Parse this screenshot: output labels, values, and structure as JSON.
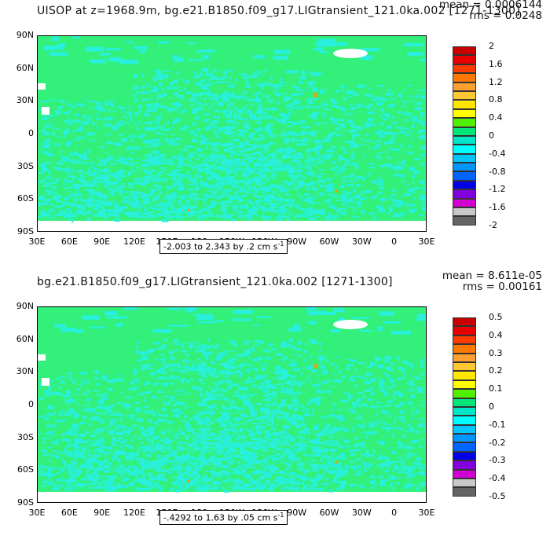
{
  "panels": [
    {
      "title": "UISOP at z=1968.9m, bg.e21.B1850.f09_g17.LIGtransient_121.0ka.002 [1271-1300]",
      "mean": "mean = 0.0006144",
      "rms": "rms = 0.0248",
      "range": "-2.003 to 2.343 by .2 cm s",
      "range_unit_sup": "-1",
      "colorbar_labels": [
        "2",
        "1.6",
        "1.2",
        "0.8",
        "0.4",
        "0",
        "-0.4",
        "-0.8",
        "-1.2",
        "-1.6",
        "-2"
      ]
    },
    {
      "title": "bg.e21.B1850.f09_g17.LIGtransient_121.0ka.002 [1271-1300]",
      "mean": "mean = 8.611e-05",
      "rms": "rms = 0.00161",
      "range": "-.4292 to 1.63 by .05 cm s",
      "range_unit_sup": "-1",
      "colorbar_labels": [
        "0.5",
        "0.4",
        "0.3",
        "0.2",
        "0.1",
        "0",
        "-0.1",
        "-0.2",
        "-0.3",
        "-0.4",
        "-0.5"
      ]
    }
  ],
  "lat_labels": [
    "90N",
    "60N",
    "30N",
    "0",
    "30S",
    "60S",
    "90S"
  ],
  "lon_labels": [
    "30E",
    "60E",
    "90E",
    "120E",
    "150E",
    "180",
    "150W",
    "120W",
    "90W",
    "60W",
    "30W",
    "0",
    "30E"
  ],
  "colorbar_colors": [
    "#c80000",
    "#e60000",
    "#ff3c00",
    "#ff7800",
    "#ffa030",
    "#ffc832",
    "#ffe600",
    "#ffff00",
    "#50f000",
    "#00e678",
    "#00e6c8",
    "#00ffff",
    "#00c8ff",
    "#0096ff",
    "#0064ff",
    "#0000e6",
    "#8200dc",
    "#d200d2",
    "#c8c8c8",
    "#646464"
  ],
  "map_colors": {
    "land": "#32f07a",
    "ocean_speckle": "#28f0dc",
    "ice": "#ffffff",
    "hotspot": "#ff9600"
  }
}
